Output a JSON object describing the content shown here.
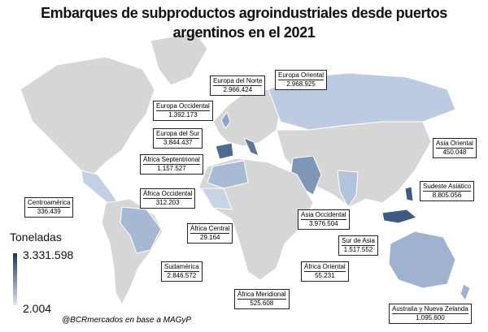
{
  "title": [
    "Embarques de subproductos agroindustriales  desde puertos",
    "argentinos en el 2021"
  ],
  "regions": [
    {
      "name": "Europa del Norte",
      "value": "2.966.424"
    },
    {
      "name": "Europa Oriental",
      "value": "2.968.925"
    },
    {
      "name": "Europa Occidental",
      "value": "1.392.173"
    },
    {
      "name": "Europa del Sur",
      "value": "3.844.437"
    },
    {
      "name": "África Septentrional",
      "value": "1.157.527"
    },
    {
      "name": "Asia Oriental",
      "value": "450.048"
    },
    {
      "name": "Sudeste Asiático",
      "value": "8.805.056"
    },
    {
      "name": "Centroamérica",
      "value": "336.439"
    },
    {
      "name": "África Occidental",
      "value": "312.203"
    },
    {
      "name": "Asia Occidental",
      "value": "3.976.504"
    },
    {
      "name": "África Central",
      "value": "29.164"
    },
    {
      "name": "Sur de Asia",
      "value": "1.517.552"
    },
    {
      "name": "Sudamérica",
      "value": "2.846.572"
    },
    {
      "name": "África Oriental",
      "value": "55.231"
    },
    {
      "name": "África Meridional",
      "value": "525.608"
    },
    {
      "name": "Australia y Nueva Zelanda",
      "value": "1.095.600"
    }
  ],
  "legend": {
    "title": "Toneladas",
    "max": "3.331.598",
    "min": "2.004"
  },
  "source": "@BCRmercados en base a MAGyP"
}
